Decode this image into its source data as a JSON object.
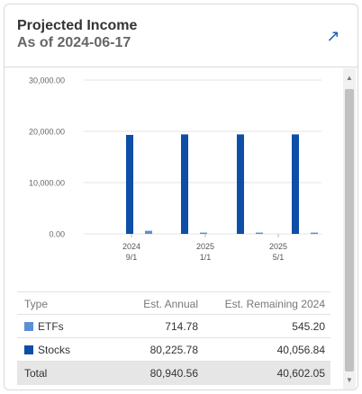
{
  "widget": {
    "title": "Projected Income",
    "subtitle": "As of 2024-06-17",
    "expand_icon": "arrow-up-right-icon",
    "accent": "#1d5fa8"
  },
  "chart_data": {
    "type": "bar",
    "y_ticks": [
      "0.00",
      "10,000.00",
      "20,000.00",
      "30,000.00"
    ],
    "ylim": [
      0,
      30000
    ],
    "grid": true,
    "x_ticks": [
      {
        "year": "2024",
        "date": "9/1"
      },
      {
        "year": "2025",
        "date": "1/1"
      },
      {
        "year": "2025",
        "date": "5/1"
      }
    ],
    "series": [
      {
        "name": "Stocks",
        "color": "#0d4ea6",
        "values": [
          19300,
          19400,
          19400,
          19400
        ]
      },
      {
        "name": "ETFs",
        "color": "#5b8fd6",
        "values": [
          600,
          250,
          250,
          250
        ]
      }
    ]
  },
  "table": {
    "headers": {
      "type": "Type",
      "annual": "Est. Annual",
      "remaining": "Est. Remaining 2024"
    },
    "rows": [
      {
        "type": "ETFs",
        "color": "#5b8fd6",
        "annual": "714.78",
        "remaining": "545.20"
      },
      {
        "type": "Stocks",
        "color": "#0d4ea6",
        "annual": "80,225.78",
        "remaining": "40,056.84"
      }
    ],
    "total": {
      "type": "Total",
      "annual": "80,940.56",
      "remaining": "40,602.05"
    }
  }
}
